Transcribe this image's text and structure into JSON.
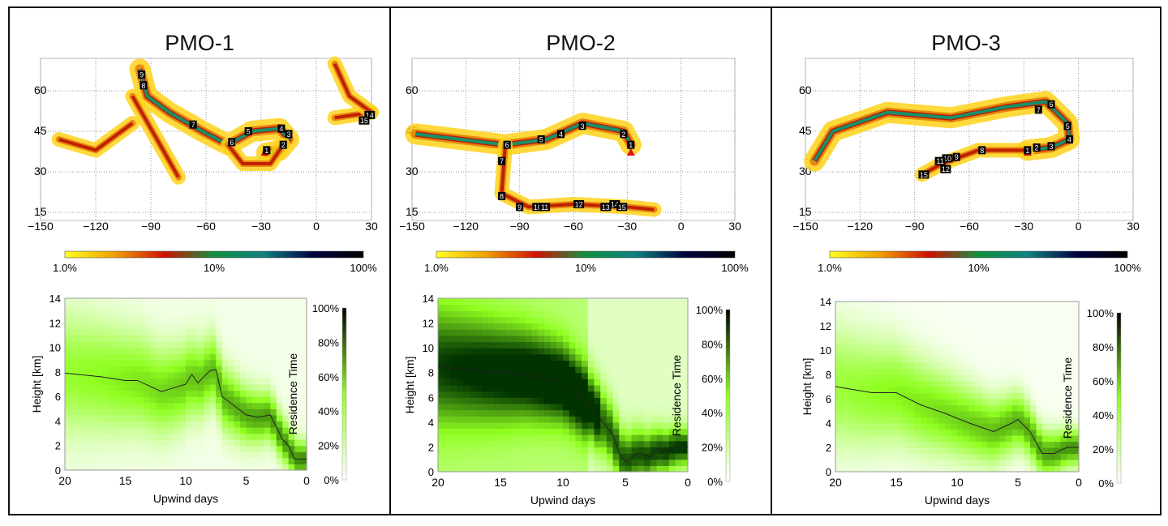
{
  "colorbar_map": {
    "labels": [
      "1.0%",
      "10%",
      "100%"
    ],
    "colors": [
      "#ffff20",
      "#f0a000",
      "#d01000",
      "#109040",
      "#108080",
      "#000040",
      "#000000"
    ]
  },
  "colorbar_height": {
    "label": "Residence Time",
    "ticks": [
      "0%",
      "20%",
      "40%",
      "60%",
      "80%",
      "100%"
    ],
    "colors": [
      "#ffffff",
      "#90ff20",
      "#000000"
    ]
  },
  "chart_data": [
    {
      "type": "map",
      "title": "PMO-1",
      "lon_ticks": [
        "-150",
        "-120",
        "-90",
        "-60",
        "-30",
        "0",
        "30"
      ],
      "lat_ticks": [
        "15",
        "30",
        "45",
        "60"
      ],
      "xlim": [
        -150,
        30
      ],
      "ylim": [
        12,
        72
      ],
      "grid": true,
      "markers": [
        {
          "label": "1",
          "lon": -27,
          "lat": 38
        },
        {
          "label": "2",
          "lon": -18,
          "lat": 40
        },
        {
          "label": "3",
          "lon": -15,
          "lat": 44
        },
        {
          "label": "4",
          "lon": -19,
          "lat": 46
        },
        {
          "label": "5",
          "lon": -37,
          "lat": 45
        },
        {
          "label": "6",
          "lon": -46,
          "lat": 41
        },
        {
          "label": "7",
          "lon": -67,
          "lat": 47.5
        },
        {
          "label": "8",
          "lon": -94,
          "lat": 62
        },
        {
          "label": "9",
          "lon": -95,
          "lat": 66
        },
        {
          "label": "14",
          "lon": 29,
          "lat": 51
        },
        {
          "label": "15",
          "lon": 26,
          "lat": 49
        }
      ],
      "release_site": {
        "lon": -28,
        "lat": 37.5
      }
    },
    {
      "type": "heatmap",
      "title": "",
      "xlabel": "Upwind days",
      "ylabel": "Height [km]",
      "xlim": [
        20,
        0
      ],
      "ylim": [
        0,
        14
      ],
      "x_ticks": [
        "20",
        "15",
        "10",
        "5",
        "0"
      ],
      "y_ticks": [
        "0",
        "2",
        "4",
        "6",
        "8",
        "10",
        "12",
        "14"
      ],
      "mean_height": {
        "x": [
          20,
          17,
          15,
          14,
          12,
          11,
          10,
          9.5,
          9,
          8,
          7.5,
          7,
          5,
          4,
          3,
          2,
          1.5,
          1,
          0
        ],
        "y": [
          7.9,
          7.6,
          7.3,
          7.3,
          6.4,
          6.7,
          7.0,
          7.8,
          7.1,
          8.1,
          8.2,
          6.0,
          4.5,
          4.3,
          4.5,
          2.5,
          2.0,
          0.9,
          0.9
        ]
      }
    },
    {
      "type": "map",
      "title": "PMO-2",
      "lon_ticks": [
        "-150",
        "-120",
        "-90",
        "-60",
        "-30",
        "0",
        "30"
      ],
      "lat_ticks": [
        "15",
        "30",
        "45",
        "60"
      ],
      "xlim": [
        -150,
        30
      ],
      "ylim": [
        12,
        72
      ],
      "grid": true,
      "markers": [
        {
          "label": "1",
          "lon": -28,
          "lat": 40
        },
        {
          "label": "2",
          "lon": -32,
          "lat": 44
        },
        {
          "label": "3",
          "lon": -55,
          "lat": 47
        },
        {
          "label": "4",
          "lon": -67,
          "lat": 44
        },
        {
          "label": "5",
          "lon": -78,
          "lat": 42
        },
        {
          "label": "6",
          "lon": -97,
          "lat": 40
        },
        {
          "label": "7",
          "lon": -100,
          "lat": 34
        },
        {
          "label": "8",
          "lon": -100,
          "lat": 21
        },
        {
          "label": "9",
          "lon": -90,
          "lat": 17
        },
        {
          "label": "10",
          "lon": -80,
          "lat": 17
        },
        {
          "label": "11",
          "lon": -76,
          "lat": 17
        },
        {
          "label": "12",
          "lon": -57,
          "lat": 18
        },
        {
          "label": "13",
          "lon": -42,
          "lat": 17
        },
        {
          "label": "14",
          "lon": -37,
          "lat": 18
        },
        {
          "label": "15",
          "lon": -33,
          "lat": 17
        }
      ],
      "release_site": {
        "lon": -28,
        "lat": 37.5
      }
    },
    {
      "type": "heatmap",
      "title": "",
      "xlabel": "Upwind days",
      "ylabel": "Height [km]",
      "xlim": [
        20,
        0
      ],
      "ylim": [
        0,
        14
      ],
      "x_ticks": [
        "20",
        "15",
        "10",
        "5",
        "0"
      ],
      "y_ticks": [
        "0",
        "2",
        "4",
        "6",
        "8",
        "10",
        "12",
        "14"
      ],
      "mean_height": {
        "x": [
          20,
          15,
          13,
          10,
          8,
          6,
          5.5,
          5,
          4,
          3,
          2.5,
          2,
          1,
          0
        ],
        "y": [
          8.5,
          8.0,
          7.9,
          7.2,
          5.5,
          3.0,
          1.5,
          0.8,
          1.5,
          1.2,
          1.9,
          1.5,
          2.0,
          2.0
        ]
      }
    },
    {
      "type": "map",
      "title": "PMO-3",
      "lon_ticks": [
        "-150",
        "-120",
        "-90",
        "-60",
        "-30",
        "0",
        "30"
      ],
      "lat_ticks": [
        "15",
        "30",
        "45",
        "60"
      ],
      "xlim": [
        -150,
        30
      ],
      "ylim": [
        12,
        72
      ],
      "grid": true,
      "markers": [
        {
          "label": "1",
          "lon": -28,
          "lat": 38
        },
        {
          "label": "2",
          "lon": -23,
          "lat": 39
        },
        {
          "label": "3",
          "lon": -15,
          "lat": 39.5
        },
        {
          "label": "4",
          "lon": -5,
          "lat": 42
        },
        {
          "label": "5",
          "lon": -6,
          "lat": 47
        },
        {
          "label": "6",
          "lon": -15,
          "lat": 55
        },
        {
          "label": "7",
          "lon": -22,
          "lat": 53
        },
        {
          "label": "8",
          "lon": -53,
          "lat": 38
        },
        {
          "label": "9",
          "lon": -67,
          "lat": 35.5
        },
        {
          "label": "10",
          "lon": -72,
          "lat": 35
        },
        {
          "label": "11",
          "lon": -76,
          "lat": 34
        },
        {
          "label": "12",
          "lon": -73,
          "lat": 31
        },
        {
          "label": "15",
          "lon": -85,
          "lat": 29
        }
      ],
      "release_site": {
        "lon": -28,
        "lat": 37.5
      }
    },
    {
      "type": "heatmap",
      "title": "",
      "xlabel": "Upwind days",
      "ylabel": "Height [km]",
      "xlim": [
        20,
        0
      ],
      "ylim": [
        0,
        14
      ],
      "x_ticks": [
        "20",
        "15",
        "10",
        "5",
        "0"
      ],
      "y_ticks": [
        "0",
        "2",
        "4",
        "6",
        "8",
        "10",
        "12",
        "14"
      ],
      "mean_height": {
        "x": [
          20,
          17,
          15,
          13,
          11,
          9,
          7,
          5.5,
          5,
          4,
          3,
          2,
          1,
          0
        ],
        "y": [
          7.0,
          6.5,
          6.5,
          5.5,
          4.8,
          4.0,
          3.3,
          4.0,
          4.3,
          3.3,
          1.5,
          1.5,
          2.0,
          2.0
        ]
      }
    }
  ]
}
